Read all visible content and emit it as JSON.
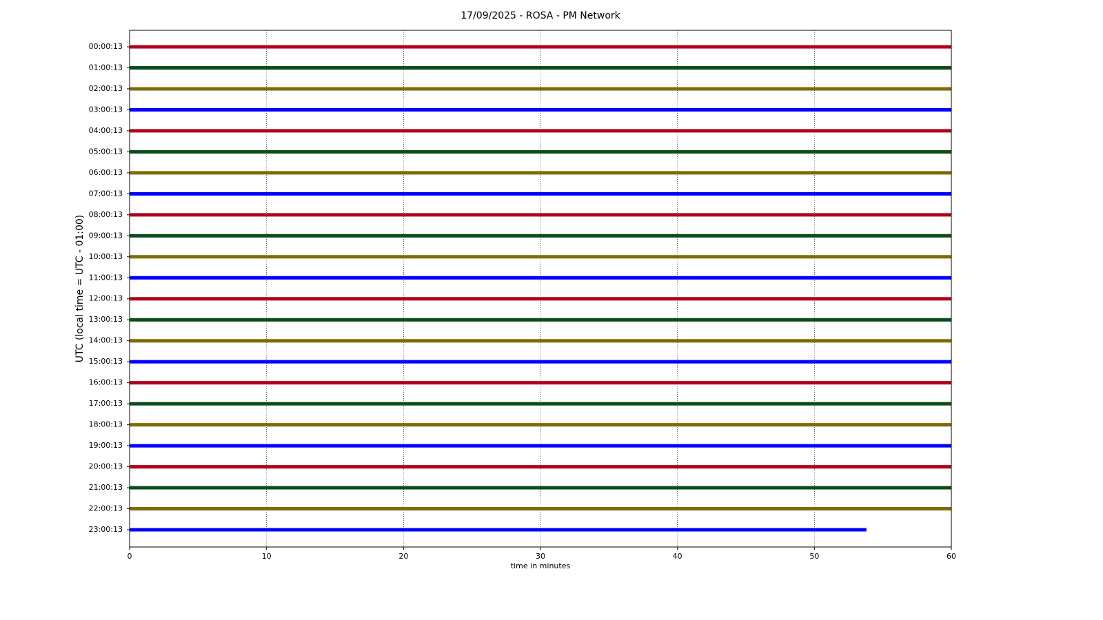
{
  "chart_data": {
    "type": "helicorder",
    "title": "17/09/2025 - ROSA - PM Network",
    "xlabel": "time in minutes",
    "ylabel": "UTC (local time = UTC - 01:00)",
    "xlim": [
      0,
      60
    ],
    "xticks": [
      0,
      10,
      20,
      30,
      40,
      50,
      60
    ],
    "xgrid": true,
    "series": [
      {
        "name": "00:00:13",
        "color": "#b3001b",
        "x": [
          0,
          60
        ]
      },
      {
        "name": "01:00:13",
        "color": "#0b4d1a",
        "x": [
          0,
          60
        ]
      },
      {
        "name": "02:00:13",
        "color": "#7d6b00",
        "x": [
          0,
          60
        ]
      },
      {
        "name": "03:00:13",
        "color": "#0000ff",
        "x": [
          0,
          60
        ]
      },
      {
        "name": "04:00:13",
        "color": "#b3001b",
        "x": [
          0,
          60
        ]
      },
      {
        "name": "05:00:13",
        "color": "#0b4d1a",
        "x": [
          0,
          60
        ]
      },
      {
        "name": "06:00:13",
        "color": "#7d6b00",
        "x": [
          0,
          60
        ]
      },
      {
        "name": "07:00:13",
        "color": "#0000ff",
        "x": [
          0,
          60
        ]
      },
      {
        "name": "08:00:13",
        "color": "#b3001b",
        "x": [
          0,
          60
        ]
      },
      {
        "name": "09:00:13",
        "color": "#0b4d1a",
        "x": [
          0,
          60
        ]
      },
      {
        "name": "10:00:13",
        "color": "#7d6b00",
        "x": [
          0,
          60
        ]
      },
      {
        "name": "11:00:13",
        "color": "#0000ff",
        "x": [
          0,
          60
        ]
      },
      {
        "name": "12:00:13",
        "color": "#b3001b",
        "x": [
          0,
          60
        ]
      },
      {
        "name": "13:00:13",
        "color": "#0b4d1a",
        "x": [
          0,
          60
        ]
      },
      {
        "name": "14:00:13",
        "color": "#7d6b00",
        "x": [
          0,
          60
        ]
      },
      {
        "name": "15:00:13",
        "color": "#0000ff",
        "x": [
          0,
          60
        ]
      },
      {
        "name": "16:00:13",
        "color": "#b3001b",
        "x": [
          0,
          60
        ]
      },
      {
        "name": "17:00:13",
        "color": "#0b4d1a",
        "x": [
          0,
          60
        ]
      },
      {
        "name": "18:00:13",
        "color": "#7d6b00",
        "x": [
          0,
          60
        ]
      },
      {
        "name": "19:00:13",
        "color": "#0000ff",
        "x": [
          0,
          60
        ]
      },
      {
        "name": "20:00:13",
        "color": "#b3001b",
        "x": [
          0,
          60
        ]
      },
      {
        "name": "21:00:13",
        "color": "#0b4d1a",
        "x": [
          0,
          60
        ]
      },
      {
        "name": "22:00:13",
        "color": "#7d6b00",
        "x": [
          0,
          60
        ]
      },
      {
        "name": "23:00:13",
        "color": "#0000ff",
        "x": [
          0,
          53.8
        ]
      }
    ]
  }
}
